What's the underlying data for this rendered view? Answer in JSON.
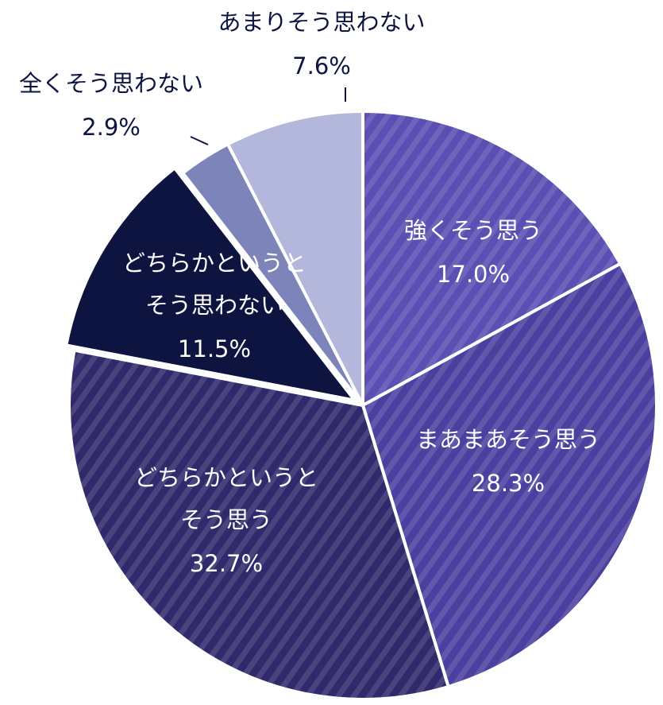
{
  "chart_data": {
    "type": "pie",
    "categories": [
      [
        "強くそう思う"
      ],
      [
        "まあまあそう思う"
      ],
      [
        "どちらかというと",
        "そう思う"
      ],
      [
        "どちらかというと",
        "そう思わない"
      ],
      [
        "全くそう思わない"
      ],
      [
        "あまりそう思わない"
      ]
    ],
    "values": [
      17.0,
      28.3,
      32.7,
      11.5,
      2.9,
      7.6
    ],
    "value_labels": [
      "17.0%",
      "28.3%",
      "32.7%",
      "11.5%",
      "2.9%",
      "7.6%"
    ],
    "colors": [
      "#5a4fb2",
      "#4b409f",
      "#302a6c",
      "#0d1440",
      "#7d84ba",
      "#b3b7dc"
    ],
    "hatched": [
      true,
      true,
      true,
      false,
      false,
      false
    ],
    "exploded": [
      false,
      false,
      false,
      true,
      false,
      false
    ]
  }
}
